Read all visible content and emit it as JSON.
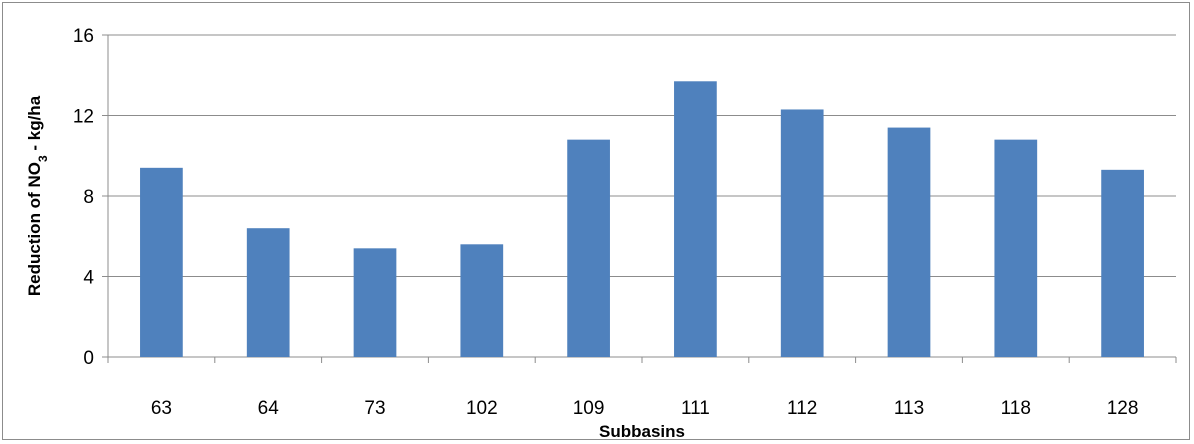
{
  "chart_data": {
    "type": "bar",
    "title": "",
    "xlabel": "Subbasins",
    "ylabel": {
      "prefix": "Reduction of NO",
      "subscript": "3",
      "suffix": " - kg/ha"
    },
    "categories": [
      "63",
      "64",
      "73",
      "102",
      "109",
      "111",
      "112",
      "113",
      "118",
      "128"
    ],
    "values": [
      9.4,
      6.4,
      5.4,
      5.6,
      10.8,
      13.7,
      12.3,
      11.4,
      10.8,
      9.3
    ],
    "ylim": [
      0,
      16
    ],
    "yticks": [
      "0",
      "4",
      "8",
      "12",
      "16"
    ],
    "grid": true,
    "legend": "none",
    "bar_color": "#4f81bd",
    "grid_color": "#8c8c8c"
  }
}
